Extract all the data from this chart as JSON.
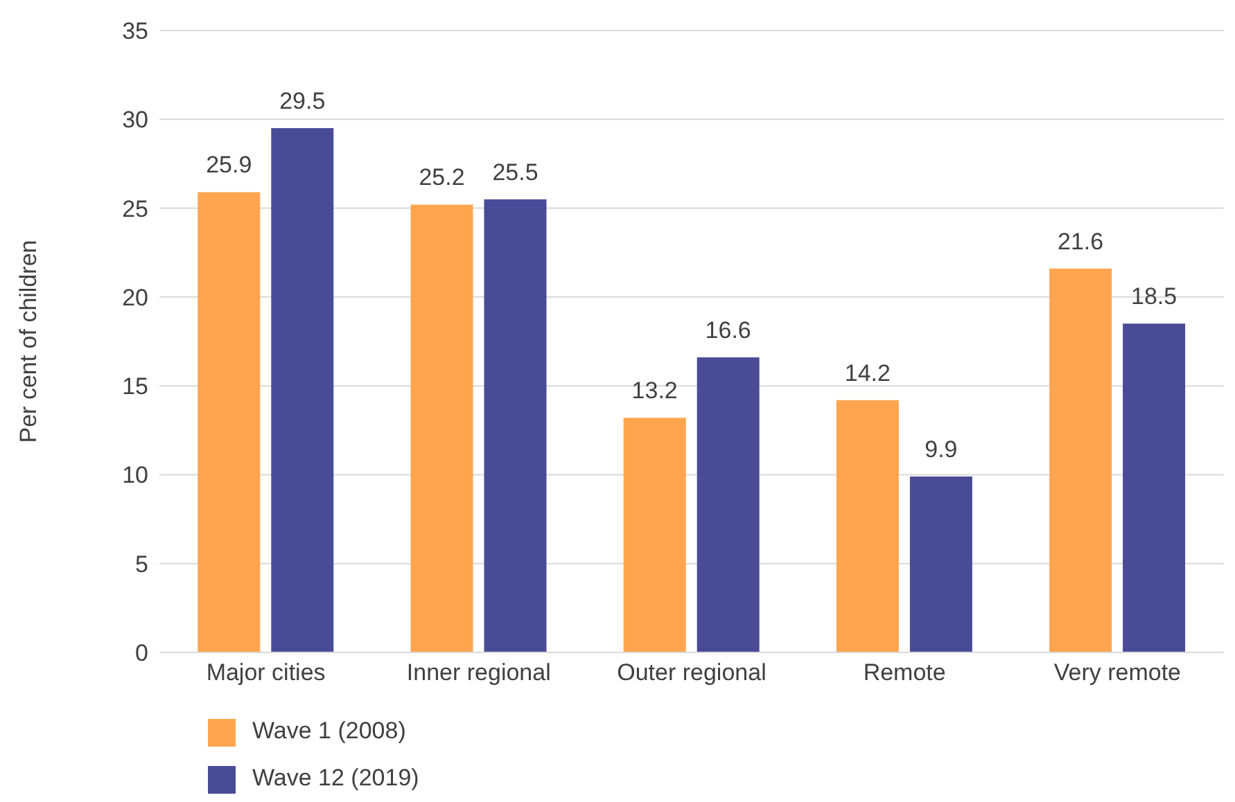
{
  "chart_data": {
    "type": "bar",
    "ylabel": "Per cent of children",
    "categories": [
      "Major cities",
      "Inner regional",
      "Outer regional",
      "Remote",
      "Very remote"
    ],
    "series": [
      {
        "name": "Wave 1 (2008)",
        "color": "#ffa54f",
        "values": [
          25.9,
          25.2,
          13.2,
          14.2,
          21.6
        ]
      },
      {
        "name": "Wave 12 (2019)",
        "color": "#4a4b97",
        "values": [
          29.5,
          25.5,
          16.6,
          9.9,
          18.5
        ]
      }
    ],
    "ylim": [
      0,
      35
    ],
    "yticks": [
      0,
      5,
      10,
      15,
      20,
      25,
      30,
      35
    ],
    "grid": "y",
    "legend": "bottom left",
    "data_labels": true
  }
}
